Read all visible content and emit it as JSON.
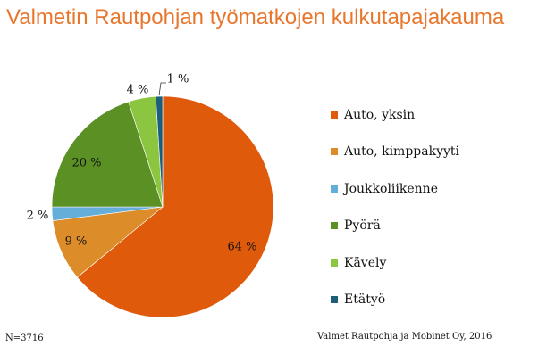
{
  "chart_data": {
    "type": "pie",
    "title": "Valmetin Rautpohjan työmatkojen kulkutapajakauma",
    "categories": [
      "Auto, yksin",
      "Auto, kimppakyyti",
      "Joukkoliikenne",
      "Pyörä",
      "Kävely",
      "Etätyö"
    ],
    "values": [
      64,
      9,
      2,
      20,
      4,
      1
    ],
    "value_labels": [
      "64 %",
      "9 %",
      "2 %",
      "20 %",
      "4 %",
      "1 %"
    ],
    "colors": [
      "#DF5A0B",
      "#DD8C2A",
      "#66AEDA",
      "#5B9124",
      "#8CC540",
      "#1D5F7A"
    ],
    "start_angle_deg": 0,
    "direction": "clockwise",
    "legend_position": "right"
  },
  "footnote": {
    "sample_size": "N=3716",
    "source": "Valmet Rautpohja ja Mobinet Oy, 2016"
  }
}
